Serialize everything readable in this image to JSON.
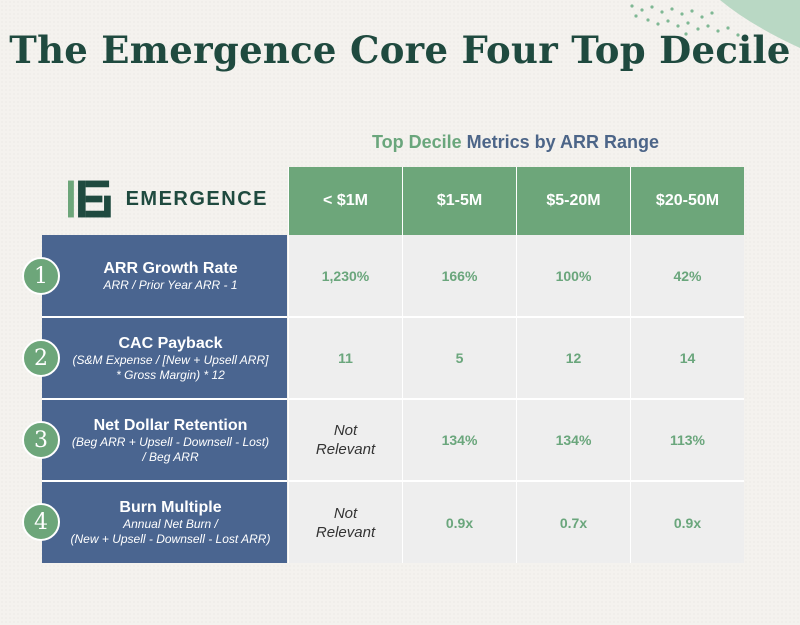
{
  "title": "The Emergence Core Four Top Decile",
  "subtitle": {
    "part1": "Top Decile",
    "part2": "Metrics by ARR Range"
  },
  "logo": {
    "text": "EMERGENCE"
  },
  "columns": [
    "< $1M",
    "$1-5M",
    "$5-20M",
    "$20-50M"
  ],
  "rows": [
    {
      "number": "1",
      "name": "ARR Growth Rate",
      "formula_lines": [
        "ARR / Prior Year ARR - 1"
      ],
      "values": [
        "1,230%",
        "166%",
        "100%",
        "42%"
      ]
    },
    {
      "number": "2",
      "name": "CAC Payback",
      "formula_lines": [
        "(S&M Expense / [New + Upsell ARR]",
        "* Gross Margin) * 12"
      ],
      "values": [
        "11",
        "5",
        "12",
        "14"
      ]
    },
    {
      "number": "3",
      "name": "Net Dollar Retention",
      "formula_lines": [
        "(Beg ARR + Upsell - Downsell - Lost)",
        "/ Beg ARR"
      ],
      "values": [
        "Not Relevant",
        "134%",
        "134%",
        "113%"
      ]
    },
    {
      "number": "4",
      "name": "Burn Multiple",
      "formula_lines": [
        "Annual Net Burn /",
        "(New + Upsell - Downsell - Lost ARR)"
      ],
      "values": [
        "Not Relevant",
        "0.9x",
        "0.7x",
        "0.9x"
      ]
    }
  ],
  "colors": {
    "title": "#1f4a3f",
    "header_green": "#6da67a",
    "row_navy": "#4a6590",
    "value_green": "#6aa67c"
  }
}
